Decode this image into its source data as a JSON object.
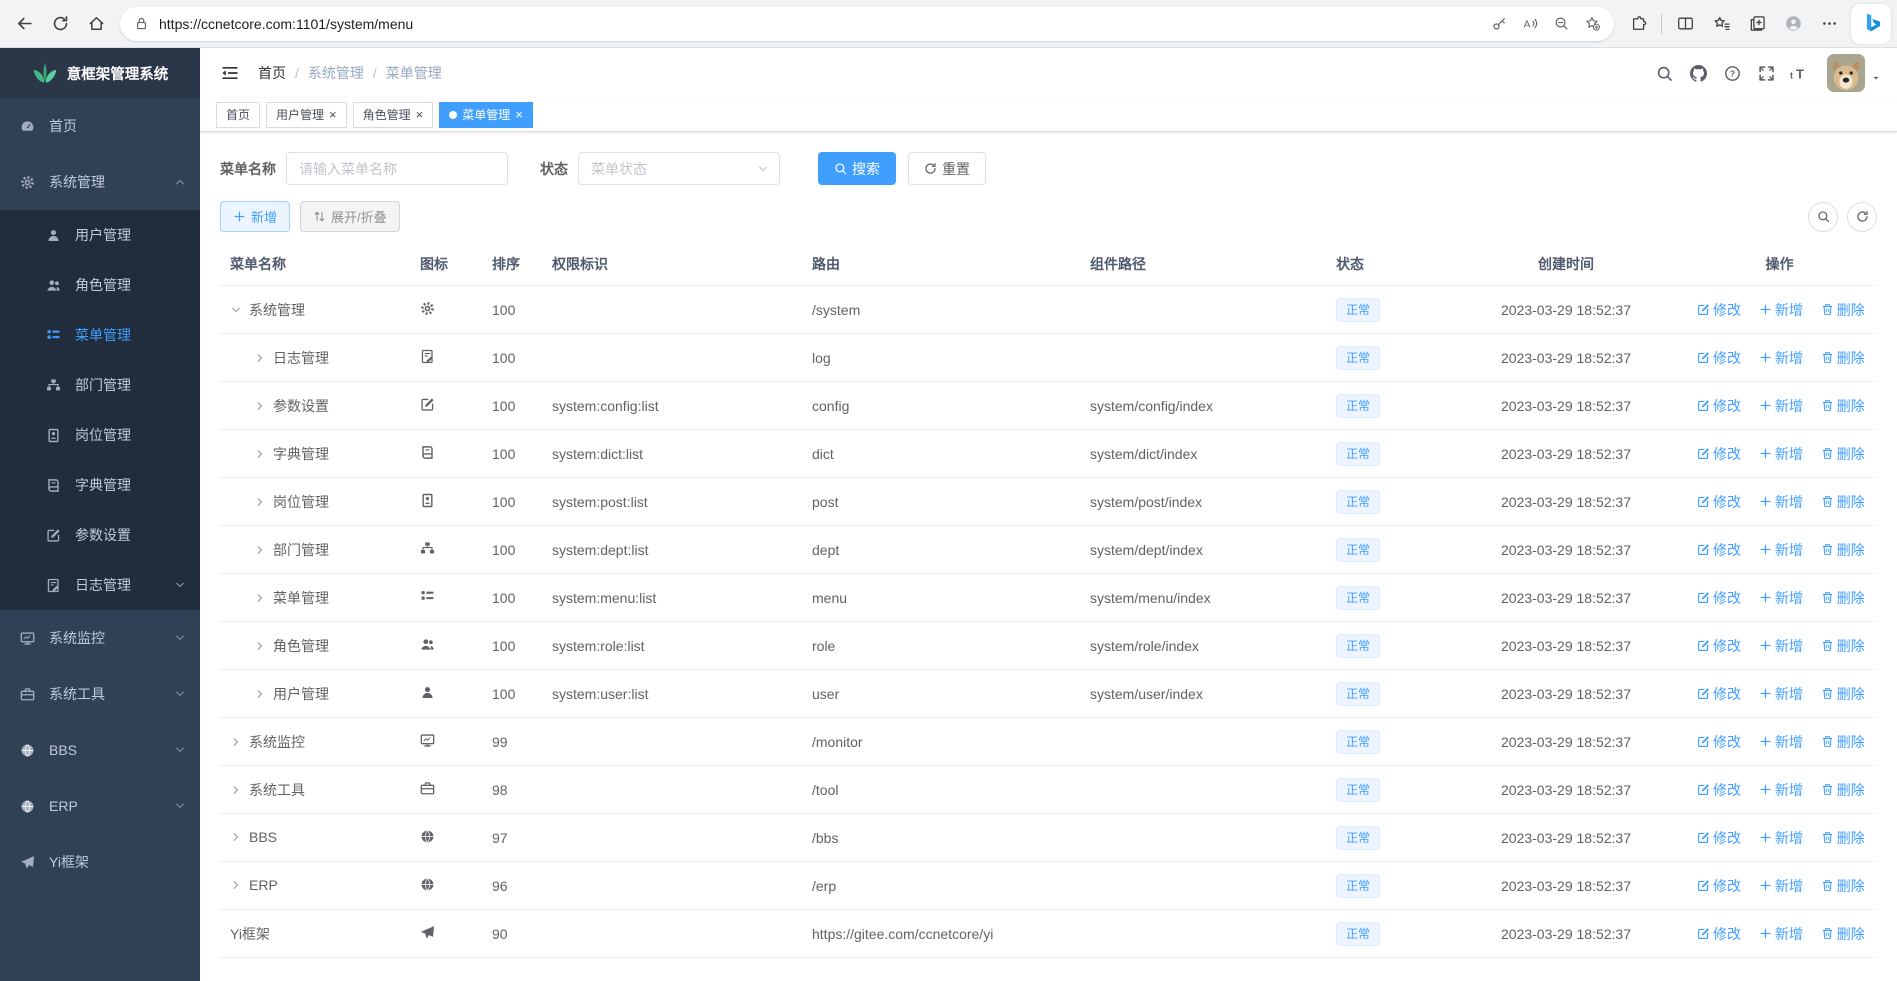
{
  "colors": {
    "accent": "#409eff",
    "sidebar_bg": "#304156",
    "submenu_bg": "#212d3d",
    "active_tab_bg": "#409eff",
    "status_badge_bg": "#ecf5ff",
    "status_badge_text": "#409eff"
  },
  "browser": {
    "url": "https://ccnetcore.com:1101/system/menu",
    "nav_icons": [
      "back-icon",
      "refresh-icon",
      "home-icon"
    ],
    "lock_icon": "lock-icon",
    "address_action_icons": [
      "key-icon",
      "read-aloud-icon",
      "zoom-out-icon",
      "favorite-add-icon"
    ],
    "toolbar_icons": [
      "extensions-icon",
      "split-screen-icon",
      "favorites-icon",
      "collections-icon",
      "profile-icon",
      "more-icon"
    ],
    "assistant_icon": "bing-icon"
  },
  "sidebar": {
    "logo_title": "意框架管理系统",
    "items": [
      {
        "label": "首页",
        "icon": "dashboard-icon",
        "level": 1
      },
      {
        "label": "系统管理",
        "icon": "gear-icon",
        "level": 1,
        "chevron": "up"
      },
      {
        "label": "用户管理",
        "icon": "user-icon",
        "level": 2
      },
      {
        "label": "角色管理",
        "icon": "role-icon",
        "level": 2
      },
      {
        "label": "菜单管理",
        "icon": "menu-icon",
        "level": 2,
        "active": true
      },
      {
        "label": "部门管理",
        "icon": "dept-icon",
        "level": 2
      },
      {
        "label": "岗位管理",
        "icon": "post-icon",
        "level": 2
      },
      {
        "label": "字典管理",
        "icon": "dict-icon",
        "level": 2
      },
      {
        "label": "参数设置",
        "icon": "edit-icon",
        "level": 2
      },
      {
        "label": "日志管理",
        "icon": "log-icon",
        "level": 2,
        "chevron": "down"
      },
      {
        "label": "系统监控",
        "icon": "monitor-icon",
        "level": 1,
        "chevron": "down"
      },
      {
        "label": "系统工具",
        "icon": "tool-icon",
        "level": 1,
        "chevron": "down"
      },
      {
        "label": "BBS",
        "icon": "globe-icon",
        "level": 1,
        "chevron": "down"
      },
      {
        "label": "ERP",
        "icon": "globe-icon",
        "level": 1,
        "chevron": "down"
      },
      {
        "label": "Yi框架",
        "icon": "plane-icon",
        "level": 1
      }
    ]
  },
  "navbar": {
    "breadcrumb": [
      "首页",
      "系统管理",
      "菜单管理"
    ],
    "right_icons": [
      "search-icon",
      "github-icon",
      "help-icon",
      "fullscreen-icon",
      "font-size-icon"
    ],
    "avatar_icon": "user-avatar",
    "caret_icon": "caret-down-icon"
  },
  "tabs": [
    {
      "label": "首页",
      "closable": false,
      "active": false
    },
    {
      "label": "用户管理",
      "closable": true,
      "active": false
    },
    {
      "label": "角色管理",
      "closable": true,
      "active": false
    },
    {
      "label": "菜单管理",
      "closable": true,
      "active": true
    }
  ],
  "filter": {
    "name_label": "菜单名称",
    "name_placeholder": "请输入菜单名称",
    "status_label": "状态",
    "status_placeholder": "菜单状态",
    "search_label": "搜索",
    "reset_label": "重置"
  },
  "toolbar": {
    "add_label": "新增",
    "expand_label": "展开/折叠",
    "tool_icons": [
      "search-icon",
      "refresh-icon"
    ]
  },
  "table": {
    "columns": [
      "菜单名称",
      "图标",
      "排序",
      "权限标识",
      "路由",
      "组件路径",
      "状态",
      "创建时间",
      "操作"
    ],
    "actions": {
      "edit": "修改",
      "add": "新增",
      "delete": "删除"
    },
    "rows": [
      {
        "name": "系统管理",
        "icon": "gear-icon",
        "arrow": "down",
        "level": 1,
        "order": "100",
        "perms": "",
        "route": "/system",
        "component": "",
        "status": "正常",
        "created": "2023-03-29 18:52:37"
      },
      {
        "name": "日志管理",
        "icon": "log-icon",
        "arrow": "right",
        "level": 2,
        "order": "100",
        "perms": "",
        "route": "log",
        "component": "",
        "status": "正常",
        "created": "2023-03-29 18:52:37"
      },
      {
        "name": "参数设置",
        "icon": "edit-icon",
        "arrow": "right",
        "level": 2,
        "order": "100",
        "perms": "system:config:list",
        "route": "config",
        "component": "system/config/index",
        "status": "正常",
        "created": "2023-03-29 18:52:37"
      },
      {
        "name": "字典管理",
        "icon": "dict-icon",
        "arrow": "right",
        "level": 2,
        "order": "100",
        "perms": "system:dict:list",
        "route": "dict",
        "component": "system/dict/index",
        "status": "正常",
        "created": "2023-03-29 18:52:37"
      },
      {
        "name": "岗位管理",
        "icon": "post-icon",
        "arrow": "right",
        "level": 2,
        "order": "100",
        "perms": "system:post:list",
        "route": "post",
        "component": "system/post/index",
        "status": "正常",
        "created": "2023-03-29 18:52:37"
      },
      {
        "name": "部门管理",
        "icon": "dept-icon",
        "arrow": "right",
        "level": 2,
        "order": "100",
        "perms": "system:dept:list",
        "route": "dept",
        "component": "system/dept/index",
        "status": "正常",
        "created": "2023-03-29 18:52:37"
      },
      {
        "name": "菜单管理",
        "icon": "menu-icon",
        "arrow": "right",
        "level": 2,
        "order": "100",
        "perms": "system:menu:list",
        "route": "menu",
        "component": "system/menu/index",
        "status": "正常",
        "created": "2023-03-29 18:52:37"
      },
      {
        "name": "角色管理",
        "icon": "role-icon",
        "arrow": "right",
        "level": 2,
        "order": "100",
        "perms": "system:role:list",
        "route": "role",
        "component": "system/role/index",
        "status": "正常",
        "created": "2023-03-29 18:52:37"
      },
      {
        "name": "用户管理",
        "icon": "user-icon",
        "arrow": "right",
        "level": 2,
        "order": "100",
        "perms": "system:user:list",
        "route": "user",
        "component": "system/user/index",
        "status": "正常",
        "created": "2023-03-29 18:52:37"
      },
      {
        "name": "系统监控",
        "icon": "monitor-icon",
        "arrow": "right",
        "level": 1,
        "order": "99",
        "perms": "",
        "route": "/monitor",
        "component": "",
        "status": "正常",
        "created": "2023-03-29 18:52:37"
      },
      {
        "name": "系统工具",
        "icon": "tool-icon",
        "arrow": "right",
        "level": 1,
        "order": "98",
        "perms": "",
        "route": "/tool",
        "component": "",
        "status": "正常",
        "created": "2023-03-29 18:52:37"
      },
      {
        "name": "BBS",
        "icon": "globe-icon",
        "arrow": "right",
        "level": 1,
        "order": "97",
        "perms": "",
        "route": "/bbs",
        "component": "",
        "status": "正常",
        "created": "2023-03-29 18:52:37"
      },
      {
        "name": "ERP",
        "icon": "globe-icon",
        "arrow": "right",
        "level": 1,
        "order": "96",
        "perms": "",
        "route": "/erp",
        "component": "",
        "status": "正常",
        "created": "2023-03-29 18:52:37"
      },
      {
        "name": "Yi框架",
        "icon": "plane-icon",
        "arrow": "none",
        "level": 1,
        "order": "90",
        "perms": "",
        "route": "https://gitee.com/ccnetcore/yi",
        "component": "",
        "status": "正常",
        "created": "2023-03-29 18:52:37"
      }
    ]
  }
}
